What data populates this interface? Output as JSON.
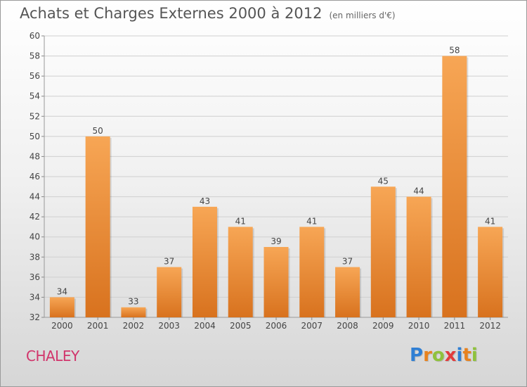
{
  "title": "Achats et Charges Externes 2000 à 2012",
  "unit_note": "(en milliers d'€)",
  "commune": "CHALEY",
  "logo": {
    "letters": [
      {
        "ch": "P",
        "color": "#2f7fd4"
      },
      {
        "ch": "r",
        "color": "#e8821e"
      },
      {
        "ch": "o",
        "color": "#8fc23c"
      },
      {
        "ch": "x",
        "color": "#e23c3c"
      },
      {
        "ch": "i",
        "color": "#2f7fd4"
      },
      {
        "ch": "t",
        "color": "#e8821e"
      },
      {
        "ch": "i",
        "color": "#8fc23c"
      }
    ]
  },
  "colors": {
    "bar_top": "#f7a655",
    "bar_bottom": "#d8721e",
    "grid": "#cfcfcf",
    "axis_text": "#444444"
  },
  "chart_data": {
    "type": "bar",
    "categories": [
      "2000",
      "2001",
      "2002",
      "2003",
      "2004",
      "2005",
      "2006",
      "2007",
      "2008",
      "2009",
      "2010",
      "2011",
      "2012"
    ],
    "values": [
      34,
      50,
      33,
      37,
      43,
      41,
      39,
      41,
      37,
      45,
      44,
      58,
      41
    ],
    "ylim": [
      32,
      60
    ],
    "yticks": [
      32,
      34,
      36,
      38,
      40,
      42,
      44,
      46,
      48,
      50,
      52,
      54,
      56,
      58,
      60
    ],
    "grid": true
  }
}
